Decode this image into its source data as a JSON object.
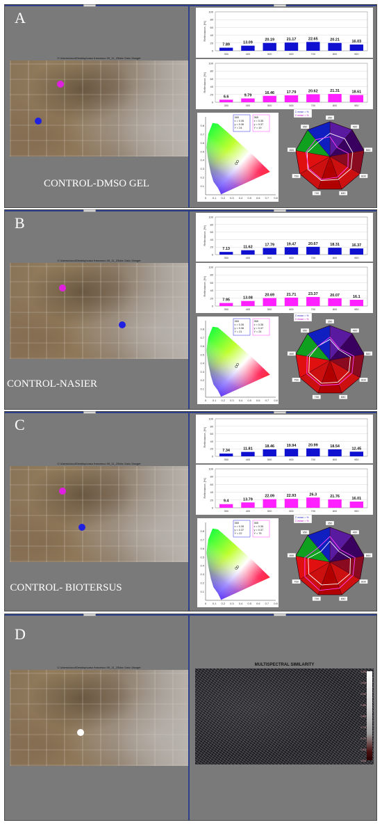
{
  "panels": [
    {
      "letter": "A",
      "label": "CONTROL-DMSO GEL",
      "photo_caption": "C:\\Users\\cloud\\Desktop\\caso francesco 09_11_23\\ato 1\\ato 1\\target",
      "legend": [
        "Σ mean = %",
        "Σ mean = %"
      ],
      "point_boxes": [
        [
          "365",
          "x = 0.35",
          "y = 0.36",
          "Y = 24"
        ],
        [
          "365",
          "x = 0.35",
          "y = 0.37",
          "Y = 19"
        ]
      ]
    },
    {
      "letter": "B",
      "label": "CONTROL-NASIER",
      "photo_caption": "C:\\Users\\cloud\\Desktop\\caso francesco 09_11_23\\ato 1\\ato 1\\target",
      "legend": [
        "Σ mean = %",
        "Σ mean = %"
      ],
      "point_boxes": [
        [
          "365",
          "x = 0.35",
          "y = 0.36",
          "Y = 21"
        ],
        [
          "365",
          "x = 0.35",
          "y = 0.37",
          "Y = 24"
        ]
      ]
    },
    {
      "letter": "C",
      "label": "CONTROL- BIOTERSUS",
      "photo_caption": "C:\\Users\\cloud\\Desktop\\caso francesco 09_11_23\\ato 1\\ato 1\\target",
      "legend": [
        "Σ mean = %",
        "Σ mean = %"
      ],
      "point_boxes": [
        [
          "365",
          "x = 0.35",
          "y = 0.37",
          "Y = 22"
        ],
        [
          "365",
          "x = 0.35",
          "y = 0.37",
          "Y = 75"
        ]
      ]
    },
    {
      "letter": "D",
      "label": "",
      "photo_caption": "C:\\Users\\cloud\\Desktop\\caso francesco 09_11_23\\ato 1\\ato 1\\target",
      "similarity_title": "MULTISPECTRAL SIMILARITY",
      "similarity_scale": [
        "1.00",
        "0.95",
        "0.90",
        "0.85",
        "0.80",
        "0.75",
        "0.70",
        "0.65",
        "0.60"
      ]
    }
  ],
  "colors": {
    "blue_point": "#2020e0",
    "magenta_point": "#e020e0",
    "white_point": "#ffffff"
  },
  "chart_data": [
    {
      "type": "bar",
      "panel": "A",
      "ylabel": "Reflectance, [%]",
      "categories": [
        "350",
        "400",
        "500",
        "600",
        "700",
        "800",
        "950"
      ],
      "values": [
        7.89,
        13.09,
        20.19,
        21.17,
        22.65,
        20.21,
        16.03
      ],
      "ylim": [
        0,
        100
      ],
      "color": "#1010d0"
    },
    {
      "type": "bar",
      "panel": "A",
      "ylabel": "Reflectance, [%]",
      "categories": [
        "350",
        "400",
        "500",
        "600",
        "700",
        "800",
        "950"
      ],
      "values": [
        6.6,
        9.79,
        16.46,
        17.79,
        20.62,
        21.31,
        18.61
      ],
      "ylim": [
        0,
        100
      ],
      "color": "#ff20ff"
    },
    {
      "type": "bar",
      "panel": "B",
      "ylabel": "Reflectance, [%]",
      "categories": [
        "350",
        "400",
        "500",
        "600",
        "700",
        "800",
        "950"
      ],
      "values": [
        7.13,
        11.62,
        17.79,
        19.47,
        20.67,
        18.31,
        16.37
      ],
      "ylim": [
        0,
        100
      ],
      "color": "#1010d0"
    },
    {
      "type": "bar",
      "panel": "B",
      "ylabel": "Reflectance, [%]",
      "categories": [
        "350",
        "400",
        "500",
        "600",
        "700",
        "800",
        "950"
      ],
      "values": [
        7.95,
        13.08,
        20.69,
        21.71,
        23.37,
        20.07,
        16.1
      ],
      "ylim": [
        0,
        100
      ],
      "color": "#ff20ff"
    },
    {
      "type": "bar",
      "panel": "C",
      "ylabel": "Reflectance, [%]",
      "categories": [
        "350",
        "400",
        "500",
        "600",
        "700",
        "800",
        "950"
      ],
      "values": [
        7.34,
        11.81,
        18.46,
        19.94,
        20.99,
        18.54,
        12.45
      ],
      "ylim": [
        0,
        100
      ],
      "color": "#1010d0"
    },
    {
      "type": "bar",
      "panel": "C",
      "ylabel": "Reflectance, [%]",
      "categories": [
        "350",
        "400",
        "500",
        "600",
        "700",
        "800",
        "950"
      ],
      "values": [
        9.4,
        13.79,
        22.09,
        22.93,
        26.3,
        21.76,
        16.01
      ],
      "ylim": [
        0,
        100
      ],
      "color": "#ff20ff"
    },
    {
      "type": "scatter",
      "panel": "A",
      "xlim": [
        0,
        0.8
      ],
      "ylim": [
        0,
        0.9
      ],
      "xticks": [
        "0",
        "0.1",
        "0.2",
        "0.3",
        "0.4",
        "0.5",
        "0.6",
        "0.7",
        "0.8"
      ],
      "yticks": [
        "0.1",
        "0.2",
        "0.3",
        "0.4",
        "0.5",
        "0.6",
        "0.7",
        "0.8"
      ],
      "points": [
        {
          "x": 0.35,
          "y": 0.36
        },
        {
          "x": 0.35,
          "y": 0.37
        }
      ]
    },
    {
      "type": "scatter",
      "panel": "B",
      "xlim": [
        0,
        0.8
      ],
      "ylim": [
        0,
        0.9
      ],
      "xticks": [
        "0",
        "0.1",
        "0.2",
        "0.3",
        "0.4",
        "0.5",
        "0.6",
        "0.7",
        "0.8"
      ],
      "yticks": [
        "0.1",
        "0.2",
        "0.3",
        "0.4",
        "0.5",
        "0.6",
        "0.7",
        "0.8"
      ],
      "points": [
        {
          "x": 0.35,
          "y": 0.36
        },
        {
          "x": 0.35,
          "y": 0.37
        }
      ]
    },
    {
      "type": "scatter",
      "panel": "C",
      "xlim": [
        0,
        0.8
      ],
      "ylim": [
        0,
        0.9
      ],
      "xticks": [
        "0",
        "0.1",
        "0.2",
        "0.3",
        "0.4",
        "0.5",
        "0.6",
        "0.7",
        "0.8"
      ],
      "yticks": [
        "0.1",
        "0.2",
        "0.3",
        "0.4",
        "0.5",
        "0.6",
        "0.7",
        "0.8"
      ],
      "points": [
        {
          "x": 0.35,
          "y": 0.37
        },
        {
          "x": 0.35,
          "y": 0.37
        }
      ]
    },
    {
      "type": "radar",
      "panel": "A",
      "axes": [
        "350",
        "400",
        "500",
        "600",
        "650",
        "700",
        "750",
        "800",
        "950"
      ],
      "series": [
        {
          "values": [
            20,
            20,
            20,
            21,
            21,
            22,
            22,
            20,
            16
          ],
          "color": "#ffffff"
        },
        {
          "values": [
            17,
            10,
            16,
            18,
            19,
            21,
            21,
            21,
            19
          ],
          "color": "#ff40ff"
        }
      ],
      "rlim": [
        0,
        30
      ]
    },
    {
      "type": "radar",
      "panel": "B",
      "axes": [
        "350",
        "400",
        "500",
        "600",
        "650",
        "700",
        "750",
        "800",
        "950"
      ],
      "series": [
        {
          "values": [
            18,
            12,
            18,
            19,
            20,
            21,
            21,
            18,
            16
          ],
          "color": "#ffffff"
        },
        {
          "values": [
            20,
            13,
            21,
            22,
            22,
            23,
            23,
            20,
            16
          ],
          "color": "#ff40ff"
        }
      ],
      "rlim": [
        0,
        30
      ]
    },
    {
      "type": "radar",
      "panel": "C",
      "axes": [
        "350",
        "400",
        "500",
        "600",
        "650",
        "700",
        "750",
        "800",
        "950"
      ],
      "series": [
        {
          "values": [
            18,
            12,
            18,
            20,
            20,
            21,
            21,
            19,
            12
          ],
          "color": "#ffffff"
        },
        {
          "values": [
            22,
            14,
            22,
            23,
            24,
            26,
            25,
            22,
            16
          ],
          "color": "#ff40ff"
        }
      ],
      "rlim": [
        0,
        30
      ]
    }
  ]
}
